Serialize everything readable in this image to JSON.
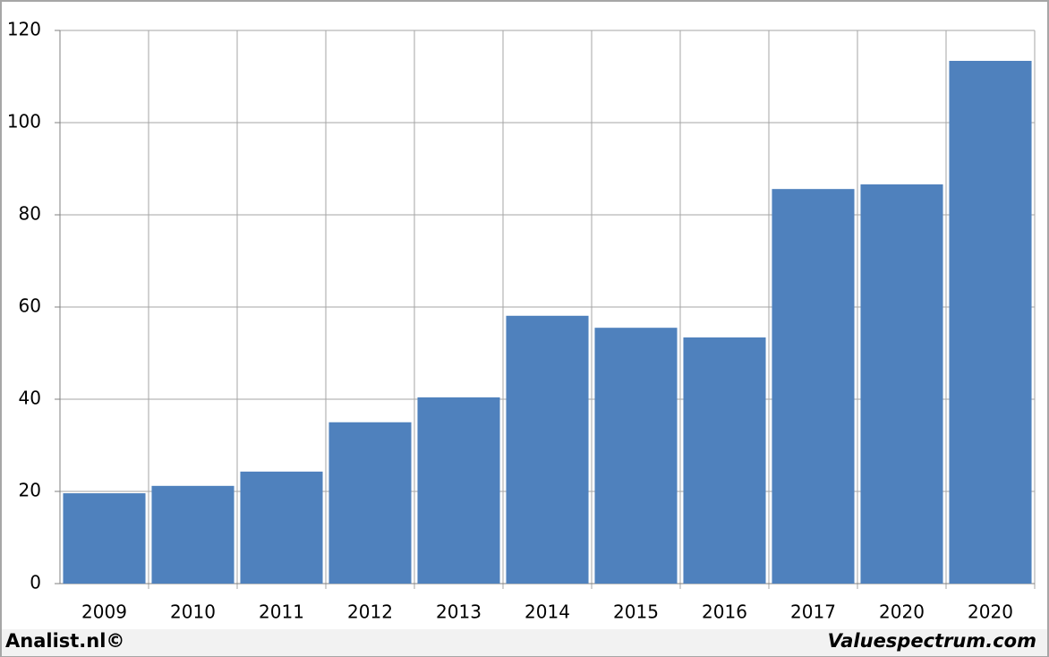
{
  "chart_data": {
    "type": "bar",
    "categories": [
      "2009",
      "2010",
      "2011",
      "2012",
      "2013",
      "2014",
      "2015",
      "2016",
      "2017",
      "2020",
      "2020"
    ],
    "values": [
      19.6,
      21.2,
      24.3,
      35.0,
      40.4,
      58.1,
      55.5,
      53.4,
      85.6,
      86.6,
      113.4
    ],
    "color": "#4f81bd",
    "ylim": [
      0,
      120
    ],
    "yticks": [
      0,
      20,
      40,
      60,
      80,
      100,
      120
    ],
    "grid": true,
    "source_left": "Analist.nl©",
    "source_right": "Valuespectrum.com"
  }
}
